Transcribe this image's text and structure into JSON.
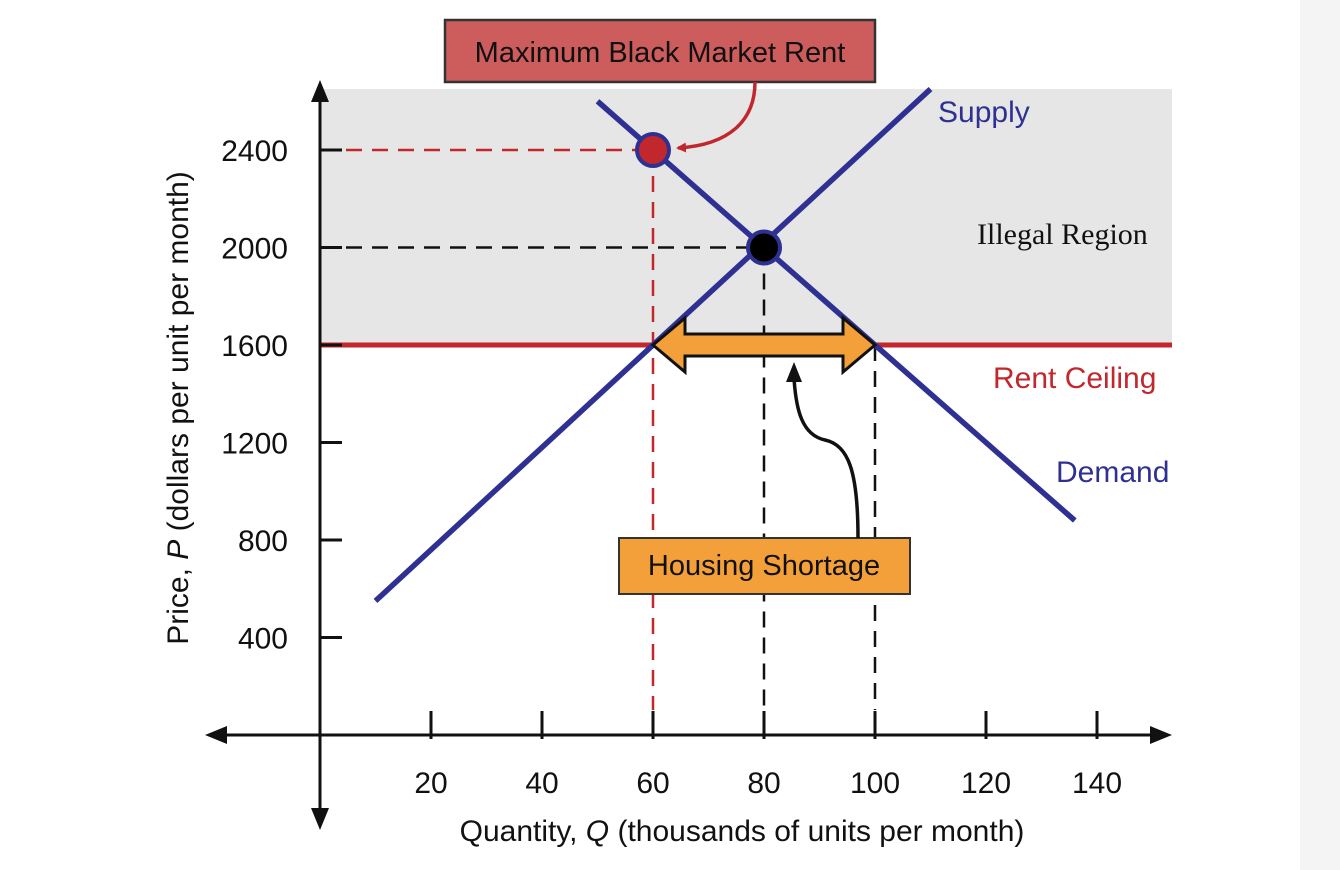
{
  "chart_data": {
    "type": "line",
    "xlabel": "Quantity, Q  (thousands of units per month)",
    "ylabel": "Price, P (dollars per unit per month)",
    "xlim": [
      0,
      150
    ],
    "ylim": [
      0,
      2650
    ],
    "x_ticks": [
      20,
      40,
      60,
      80,
      100,
      120,
      140
    ],
    "y_ticks": [
      400,
      800,
      1200,
      1600,
      2000,
      2400
    ],
    "series": [
      {
        "name": "Supply",
        "color": "#2e3192",
        "points": [
          [
            10,
            550
          ],
          [
            110,
            2650
          ]
        ]
      },
      {
        "name": "Demand",
        "color": "#2e3192",
        "points": [
          [
            50,
            2600
          ],
          [
            136,
            880
          ]
        ]
      }
    ],
    "rent_ceiling": {
      "label": "Rent Ceiling",
      "value": 1600,
      "color": "#c1272d"
    },
    "illegal_region": {
      "label": "Illegal Region",
      "from": 1600,
      "to": 2650,
      "color": "#e6e6e6"
    },
    "equilibrium": {
      "x": 80,
      "y": 2000
    },
    "black_market_point": {
      "x": 60,
      "y": 2400,
      "color": "#c1272d"
    },
    "quantity_supplied_at_ceiling": 60,
    "quantity_demanded_at_ceiling": 100,
    "annotations": {
      "black_market": {
        "text": "Maximum Black Market Rent",
        "color": "#cd5c5c"
      },
      "shortage": {
        "text": "Housing Shortage",
        "color": "#f3a03b"
      }
    },
    "grid": false
  }
}
